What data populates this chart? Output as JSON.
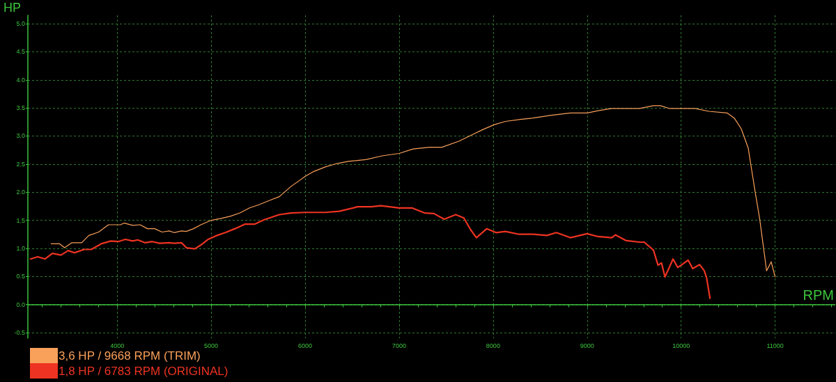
{
  "chart_data": {
    "type": "line",
    "xlabel": "RPM",
    "ylabel": "HP",
    "xlim": [
      3050,
      11640
    ],
    "ylim": [
      -0.6,
      5.15
    ],
    "xticks": [
      {
        "value": 3200,
        "label": null
      },
      {
        "value": 3400,
        "label": null
      },
      {
        "value": 3600,
        "label": null
      },
      {
        "value": 3800,
        "label": null
      },
      4000,
      {
        "value": 4200,
        "label": null
      },
      {
        "value": 4400,
        "label": null
      },
      {
        "value": 4600,
        "label": null
      },
      {
        "value": 4800,
        "label": null
      },
      5000,
      {
        "value": 5200,
        "label": null
      },
      {
        "value": 5400,
        "label": null
      },
      {
        "value": 5600,
        "label": null
      },
      {
        "value": 5800,
        "label": null
      },
      6000,
      {
        "value": 6200,
        "label": null
      },
      {
        "value": 6400,
        "label": null
      },
      {
        "value": 6600,
        "label": null
      },
      {
        "value": 6800,
        "label": null
      },
      7000,
      {
        "value": 7200,
        "label": null
      },
      {
        "value": 7400,
        "label": null
      },
      {
        "value": 7600,
        "label": null
      },
      {
        "value": 7800,
        "label": null
      },
      8000,
      {
        "value": 8200,
        "label": null
      },
      {
        "value": 8400,
        "label": null
      },
      {
        "value": 8600,
        "label": null
      },
      {
        "value": 8800,
        "label": null
      },
      9000,
      {
        "value": 9200,
        "label": null
      },
      {
        "value": 9400,
        "label": null
      },
      {
        "value": 9600,
        "label": null
      },
      {
        "value": 9800,
        "label": null
      },
      10000,
      {
        "value": 10200,
        "label": null
      },
      {
        "value": 10400,
        "label": null
      },
      {
        "value": 10600,
        "label": null
      },
      {
        "value": 10800,
        "label": null
      },
      11000,
      {
        "value": 11200,
        "label": null
      },
      {
        "value": 11400,
        "label": null
      },
      {
        "value": 11600,
        "label": null
      }
    ],
    "yticks": [
      -0.5,
      {
        "value": 0,
        "label": "0.0"
      },
      0.5,
      {
        "value": 1,
        "label": "1.0"
      },
      1.5,
      {
        "value": 2,
        "label": "2.0"
      },
      2.5,
      {
        "value": 3,
        "label": "3.0"
      },
      3.5,
      {
        "value": 4,
        "label": "4.0"
      },
      4.5,
      {
        "value": 5,
        "label": "5.0"
      }
    ],
    "ref_lines": [
      {
        "axis": "y",
        "value": 0,
        "color": "#3cc43c"
      }
    ],
    "grid": true,
    "legend": "bottom left",
    "marker": "none",
    "line_style": "solid",
    "series": [
      {
        "name": "3,6 HP / 9668 RPM (TRIM)",
        "color": "#f9a05a",
        "x": [
          3298,
          3389,
          3440,
          3518,
          3622,
          3699,
          3803,
          3907,
          4036,
          4075,
          4166,
          4244,
          4321,
          4399,
          4477,
          4554,
          4606,
          4684,
          4736,
          4813,
          4891,
          5000,
          5098,
          5202,
          5306,
          5409,
          5513,
          5617,
          5725,
          5848,
          6000,
          6093,
          6215,
          6338,
          6460,
          6645,
          6829,
          7000,
          7148,
          7320,
          7455,
          7639,
          7786,
          7884,
          8007,
          8130,
          8302,
          8424,
          8620,
          8821,
          9000,
          9115,
          9263,
          9558,
          9705,
          9779,
          9877,
          10000,
          10147,
          10295,
          10491,
          10565,
          10639,
          10713,
          10786,
          10835,
          10909,
          10958,
          11000
        ],
        "values": [
          1.08,
          1.08,
          1.01,
          1.1,
          1.1,
          1.23,
          1.29,
          1.42,
          1.42,
          1.45,
          1.41,
          1.42,
          1.35,
          1.35,
          1.29,
          1.31,
          1.28,
          1.31,
          1.3,
          1.35,
          1.42,
          1.5,
          1.53,
          1.57,
          1.63,
          1.72,
          1.78,
          1.85,
          1.92,
          2.1,
          2.28,
          2.37,
          2.45,
          2.51,
          2.55,
          2.58,
          2.65,
          2.69,
          2.77,
          2.8,
          2.8,
          2.91,
          3.03,
          3.11,
          3.2,
          3.26,
          3.3,
          3.32,
          3.37,
          3.41,
          3.41,
          3.45,
          3.49,
          3.49,
          3.54,
          3.54,
          3.49,
          3.49,
          3.49,
          3.44,
          3.41,
          3.32,
          3.13,
          2.79,
          2.02,
          1.53,
          0.6,
          0.76,
          0.49
        ]
      },
      {
        "name": "1,8 HP / 6783 RPM (ORIGINAL)",
        "color": "#ee3322",
        "x": [
          3078,
          3155,
          3233,
          3311,
          3401,
          3479,
          3544,
          3648,
          3725,
          3829,
          3933,
          4010,
          4088,
          4166,
          4218,
          4295,
          4373,
          4451,
          4554,
          4606,
          4684,
          4736,
          4826,
          4891,
          4969,
          5047,
          5150,
          5254,
          5358,
          5461,
          5565,
          5725,
          5848,
          6000,
          6215,
          6363,
          6559,
          6706,
          6804,
          7000,
          7135,
          7270,
          7369,
          7479,
          7602,
          7688,
          7761,
          7822,
          7933,
          8031,
          8130,
          8277,
          8424,
          8571,
          8673,
          8821,
          9000,
          9115,
          9263,
          9300,
          9410,
          9558,
          9607,
          9705,
          9754,
          9791,
          9828,
          9914,
          9963,
          10000,
          10074,
          10123,
          10197,
          10246,
          10270,
          10307
        ],
        "values": [
          0.81,
          0.85,
          0.81,
          0.91,
          0.88,
          0.96,
          0.92,
          0.98,
          0.98,
          1.08,
          1.13,
          1.12,
          1.16,
          1.13,
          1.15,
          1.1,
          1.12,
          1.09,
          1.1,
          1.09,
          1.1,
          1.01,
          0.99,
          1.06,
          1.16,
          1.22,
          1.28,
          1.35,
          1.43,
          1.43,
          1.51,
          1.6,
          1.63,
          1.64,
          1.64,
          1.66,
          1.74,
          1.74,
          1.76,
          1.72,
          1.72,
          1.63,
          1.62,
          1.52,
          1.6,
          1.54,
          1.33,
          1.19,
          1.35,
          1.28,
          1.3,
          1.25,
          1.25,
          1.23,
          1.28,
          1.19,
          1.26,
          1.21,
          1.19,
          1.24,
          1.14,
          1.11,
          1.11,
          0.97,
          0.7,
          0.74,
          0.49,
          0.81,
          0.66,
          0.7,
          0.79,
          0.64,
          0.71,
          0.6,
          0.48,
          0.11
        ]
      }
    ]
  }
}
